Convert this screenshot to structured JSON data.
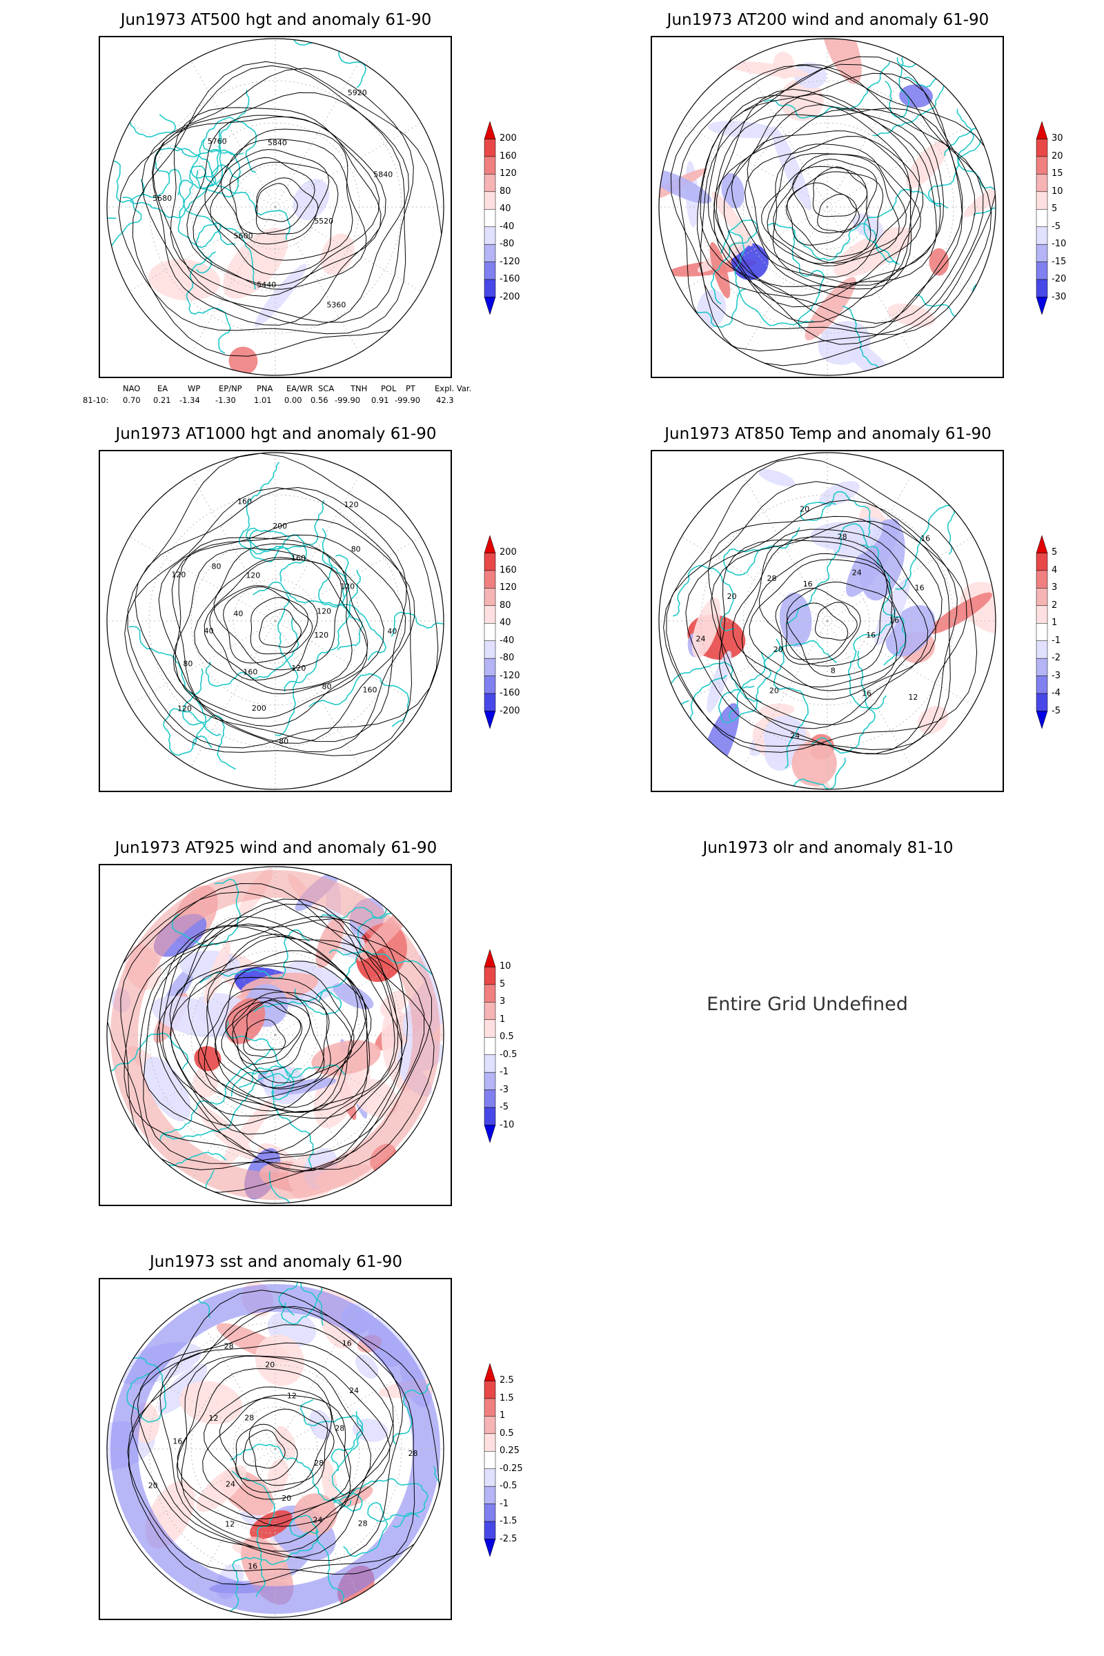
{
  "panels": [
    {
      "id": "at500",
      "title": "Jun1973 AT500 hgt and anomaly 61-90",
      "contour_labels": [
        "5520",
        "5360",
        "5440",
        "5600",
        "5680",
        "5760",
        "5840",
        "5920",
        "5840"
      ],
      "colorbar": [
        "200",
        "160",
        "120",
        "80",
        "40",
        "-40",
        "-80",
        "-120",
        "-160",
        "-200"
      ]
    },
    {
      "id": "at200",
      "title": "Jun1973 AT200 wind and anomaly 61-90",
      "contour_labels": [],
      "colorbar": [
        "30",
        "20",
        "15",
        "10",
        "5",
        "-5",
        "-10",
        "-15",
        "-20",
        "-30"
      ]
    },
    {
      "id": "at1000",
      "title": "Jun1973 AT1000 hgt and anomaly 61-90",
      "contour_labels": [
        "120",
        "160",
        "80",
        "120",
        "80",
        "200",
        "160",
        "120",
        "80",
        "40",
        "40",
        "120",
        "80",
        "120",
        "160",
        "200",
        "160",
        "120",
        "80",
        "120",
        "120",
        "40"
      ],
      "colorbar": [
        "200",
        "160",
        "120",
        "80",
        "40",
        "-40",
        "-80",
        "-120",
        "-160",
        "-200"
      ]
    },
    {
      "id": "at850",
      "title": "Jun1973 AT850 Temp and anomaly 61-90",
      "contour_labels": [
        "16",
        "12",
        "16",
        "8",
        "24",
        "20",
        "20",
        "24",
        "20",
        "28",
        "16",
        "20",
        "28",
        "24",
        "16",
        "16",
        "16"
      ],
      "colorbar": [
        "5",
        "4",
        "3",
        "2",
        "1",
        "-1",
        "-2",
        "-3",
        "-4",
        "-5"
      ]
    },
    {
      "id": "at925",
      "title": "Jun1973 AT925 wind and anomaly 61-90",
      "contour_labels": [],
      "colorbar": [
        "10",
        "5",
        "3",
        "1",
        "0.5",
        "-0.5",
        "-1",
        "-3",
        "-5",
        "-10"
      ]
    },
    {
      "id": "olr",
      "title": "Jun1973 olr and anomaly 81-10",
      "undefined_text": "Entire Grid Undefined"
    },
    {
      "id": "sst",
      "title": "Jun1973 sst and anomaly 61-90",
      "contour_labels": [
        "28",
        "28",
        "24",
        "20",
        "16",
        "12",
        "24",
        "20",
        "16",
        "12",
        "28",
        "28",
        "20",
        "12",
        "16",
        "24",
        "28",
        "28"
      ],
      "colorbar": [
        "2.5",
        "1.5",
        "1",
        "0.5",
        "0.25",
        "-0.25",
        "-0.5",
        "-1",
        "-1.5",
        "-2.5"
      ]
    }
  ],
  "teleconnection": {
    "headers": [
      "NAO",
      "EA",
      "WP",
      "EP/NP",
      "PNA",
      "EA/WR",
      "SCA",
      "TNH",
      "POL",
      "PT",
      "Expl. Var."
    ],
    "row_label": "81-10:",
    "values": [
      "0.70",
      "0.21",
      "-1.34",
      "-1.30",
      "1.01",
      "0.00",
      "0.56",
      "-99.90",
      "0.91",
      "-99.90",
      "42.3"
    ]
  },
  "colors": {
    "anomaly_positive": [
      "#ffe0e0",
      "#f6b4b4",
      "#f08080",
      "#e84848",
      "#e00000"
    ],
    "anomaly_negative": [
      "#e0e0ff",
      "#b4b4f6",
      "#8080f0",
      "#4848e8",
      "#0000e0"
    ],
    "coastline": "#1fc8c8",
    "contour": "#000000",
    "grid": "#bbbbbb"
  }
}
